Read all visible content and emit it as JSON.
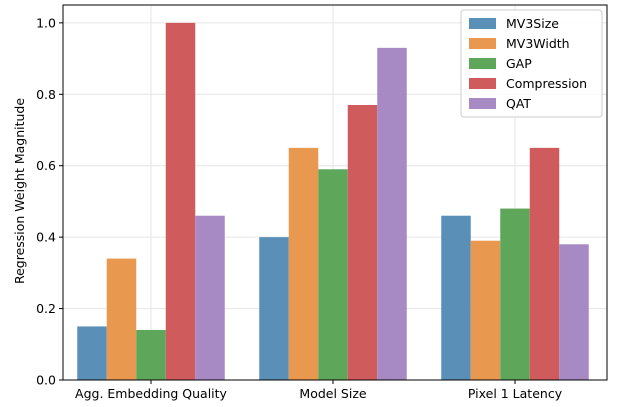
{
  "chart_data": {
    "type": "bar",
    "title": "",
    "xlabel": "",
    "ylabel": "Regression Weight Magnitude",
    "ylim": [
      0,
      1.05
    ],
    "yticks": [
      0.0,
      0.2,
      0.4,
      0.6,
      0.8,
      1.0
    ],
    "ytick_labels": [
      "0.0",
      "0.2",
      "0.4",
      "0.6",
      "0.8",
      "1.0"
    ],
    "categories": [
      "Agg. Embedding Quality",
      "Model Size",
      "Pixel 1 Latency"
    ],
    "series": [
      {
        "name": "MV3Size",
        "color": "#5a8fb8",
        "values": [
          0.15,
          0.4,
          0.46
        ]
      },
      {
        "name": "MV3Width",
        "color": "#e8994f",
        "values": [
          0.34,
          0.65,
          0.39
        ]
      },
      {
        "name": "GAP",
        "color": "#5ea65a",
        "values": [
          0.14,
          0.59,
          0.48
        ]
      },
      {
        "name": "Compression",
        "color": "#cf5b5c",
        "values": [
          1.0,
          0.77,
          0.65
        ]
      },
      {
        "name": "QAT",
        "color": "#a78ac4",
        "values": [
          0.46,
          0.93,
          0.38
        ]
      }
    ],
    "grid": true,
    "legend": "top-right"
  }
}
